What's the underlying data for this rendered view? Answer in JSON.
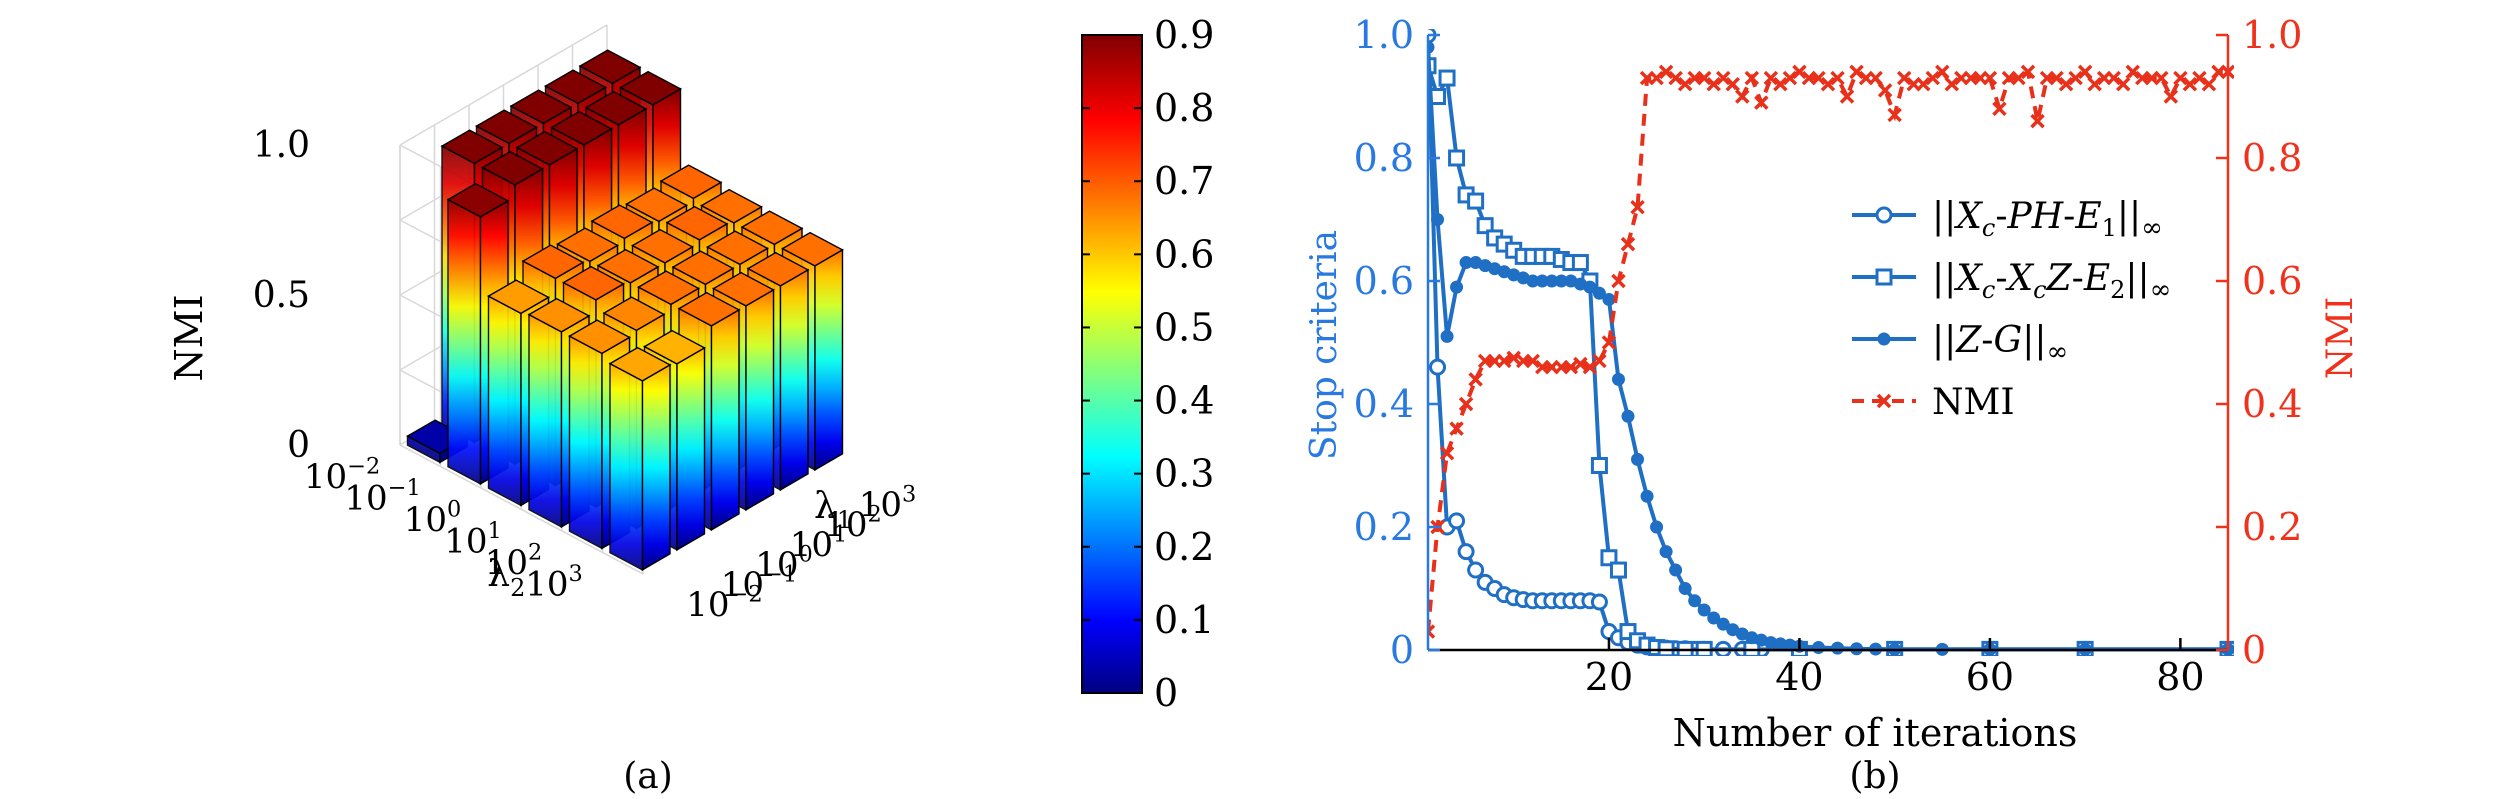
{
  "chart_data": [
    {
      "type": "bar3d",
      "panel_label": "(a)",
      "zlabel": "NMI",
      "xlabel": "λ1",
      "ylabel": "λ2",
      "ztick_labels": [
        "0",
        "0.5",
        "1.0"
      ],
      "x_tick_labels": [
        "10-2",
        "10-1",
        "100",
        "101",
        "102",
        "103"
      ],
      "y_tick_labels": [
        "10-2",
        "10-1",
        "100",
        "101",
        "102",
        "103"
      ],
      "zlim": [
        0,
        1.0
      ],
      "rows_note": "rows indexed by λ2 (10^-2 .. 10^3), columns by λ1 (10^-2 .. 10^3)",
      "values": [
        [
          0.03,
          0.93,
          0.93,
          0.93,
          0.93,
          0.93
        ],
        [
          0.89,
          0.93,
          0.93,
          0.93,
          0.93,
          0.93
        ],
        [
          0.64,
          0.69,
          0.68,
          0.69,
          0.68,
          0.69
        ],
        [
          0.65,
          0.69,
          0.68,
          0.68,
          0.69,
          0.68
        ],
        [
          0.65,
          0.66,
          0.68,
          0.68,
          0.68,
          0.68
        ],
        [
          0.63,
          0.62,
          0.68,
          0.68,
          0.68,
          0.68
        ]
      ],
      "colorbar": {
        "ticks": [
          "0",
          "0.1",
          "0.2",
          "0.3",
          "0.4",
          "0.5",
          "0.6",
          "0.7",
          "0.8",
          "0.9"
        ],
        "range": [
          0,
          0.9
        ],
        "colormap": "jet",
        "stops": [
          "#000080",
          "#0000ff",
          "#00ffff",
          "#ffff00",
          "#ff0000",
          "#800000"
        ]
      }
    },
    {
      "type": "line",
      "panel_label": "(b)",
      "xlabel": "Number of iterations",
      "ylabel_left": "Stop criteria",
      "ylabel_right": "NMI",
      "xlim": [
        1,
        85
      ],
      "ylim_left": [
        0,
        1.0
      ],
      "ylim_right": [
        0,
        1.0
      ],
      "x_tick_labels": [
        "20",
        "40",
        "60",
        "80"
      ],
      "x_ticks": [
        20,
        40,
        60,
        80
      ],
      "y_left_tick_labels": [
        "0",
        "0.2",
        "0.4",
        "0.6",
        "0.8",
        "1.0"
      ],
      "y_right_tick_labels": [
        "0",
        "0.2",
        "0.4",
        "0.6",
        "0.8",
        "1.0"
      ],
      "left_axis_color": "#2979e0",
      "right_axis_color": "#f0321c",
      "series_color_left": "#1f6fc4",
      "series_color_right": "#e8301a",
      "legend_position": "right",
      "series": [
        {
          "name": "||Xc-PH-E1||∞",
          "marker": "circle",
          "axis": "left",
          "x": [
            1,
            2,
            3,
            4,
            5,
            6,
            7,
            8,
            9,
            10,
            11,
            12,
            13,
            14,
            15,
            16,
            17,
            18,
            19,
            20,
            21,
            22,
            23,
            24,
            25,
            26,
            27,
            28,
            29,
            30,
            32,
            34,
            36,
            40,
            50,
            60,
            70,
            85
          ],
          "y": [
            1.0,
            0.46,
            0.2,
            0.21,
            0.16,
            0.13,
            0.11,
            0.1,
            0.09,
            0.085,
            0.082,
            0.08,
            0.08,
            0.08,
            0.08,
            0.08,
            0.08,
            0.08,
            0.078,
            0.03,
            0.02,
            0.012,
            0.008,
            0.005,
            0.004,
            0.003,
            0.002,
            0.002,
            0.001,
            0.001,
            0.001,
            0.001,
            0.001,
            0.001,
            0.001,
            0.001,
            0.001,
            0.001
          ]
        },
        {
          "name": "||Xc-XcZ-E2||∞",
          "marker": "square",
          "axis": "left",
          "x": [
            1,
            2,
            3,
            4,
            5,
            6,
            7,
            8,
            9,
            10,
            11,
            12,
            13,
            14,
            15,
            16,
            17,
            18,
            19,
            20,
            21,
            22,
            23,
            24,
            25,
            26,
            28,
            30,
            35,
            40,
            50,
            60,
            70,
            85
          ],
          "y": [
            0.95,
            0.9,
            0.93,
            0.8,
            0.74,
            0.73,
            0.69,
            0.67,
            0.66,
            0.65,
            0.64,
            0.64,
            0.64,
            0.64,
            0.635,
            0.63,
            0.63,
            0.6,
            0.3,
            0.15,
            0.13,
            0.03,
            0.015,
            0.008,
            0.004,
            0.002,
            0.001,
            0.001,
            0.001,
            0.001,
            0.001,
            0.001,
            0.001,
            0.001
          ]
        },
        {
          "name": "||Z-G||∞",
          "marker": "dot",
          "axis": "left",
          "x": [
            1,
            2,
            3,
            4,
            5,
            6,
            7,
            8,
            9,
            10,
            11,
            12,
            13,
            14,
            15,
            16,
            17,
            18,
            19,
            20,
            21,
            22,
            23,
            24,
            25,
            26,
            27,
            28,
            29,
            30,
            31,
            32,
            33,
            34,
            35,
            36,
            37,
            38,
            39,
            40,
            42,
            44,
            46,
            48,
            50,
            55,
            60,
            70,
            85
          ],
          "y": [
            0.98,
            0.7,
            0.51,
            0.59,
            0.63,
            0.63,
            0.625,
            0.62,
            0.615,
            0.61,
            0.605,
            0.6,
            0.6,
            0.6,
            0.6,
            0.6,
            0.595,
            0.59,
            0.58,
            0.57,
            0.44,
            0.38,
            0.31,
            0.25,
            0.2,
            0.16,
            0.13,
            0.1,
            0.08,
            0.065,
            0.052,
            0.042,
            0.033,
            0.026,
            0.02,
            0.016,
            0.012,
            0.01,
            0.008,
            0.006,
            0.004,
            0.003,
            0.002,
            0.0015,
            0.001,
            0.001,
            0.001,
            0.001,
            0.001
          ]
        },
        {
          "name": "NMI",
          "marker": "x",
          "axis": "right",
          "dashed": true,
          "x": [
            1,
            2,
            3,
            4,
            5,
            6,
            7,
            8,
            9,
            10,
            11,
            12,
            13,
            14,
            15,
            16,
            17,
            18,
            19,
            20,
            21,
            22,
            23,
            24,
            25,
            26,
            27,
            28,
            29,
            30,
            31,
            32,
            33,
            34,
            35,
            36,
            37,
            38,
            39,
            40,
            41,
            42,
            43,
            44,
            45,
            46,
            47,
            48,
            49,
            50,
            51,
            52,
            53,
            54,
            55,
            56,
            57,
            58,
            59,
            60,
            61,
            62,
            63,
            64,
            65,
            66,
            67,
            68,
            69,
            70,
            71,
            72,
            73,
            74,
            75,
            76,
            77,
            78,
            79,
            80,
            81,
            82,
            83,
            84,
            85
          ],
          "y": [
            0.03,
            0.2,
            0.32,
            0.36,
            0.4,
            0.44,
            0.47,
            0.47,
            0.47,
            0.475,
            0.47,
            0.47,
            0.46,
            0.46,
            0.46,
            0.46,
            0.465,
            0.46,
            0.47,
            0.5,
            0.6,
            0.66,
            0.72,
            0.93,
            0.93,
            0.94,
            0.93,
            0.92,
            0.93,
            0.93,
            0.92,
            0.93,
            0.92,
            0.9,
            0.93,
            0.89,
            0.93,
            0.92,
            0.93,
            0.94,
            0.93,
            0.93,
            0.92,
            0.93,
            0.9,
            0.94,
            0.93,
            0.93,
            0.91,
            0.87,
            0.93,
            0.92,
            0.92,
            0.93,
            0.94,
            0.92,
            0.93,
            0.93,
            0.93,
            0.93,
            0.88,
            0.93,
            0.93,
            0.94,
            0.86,
            0.93,
            0.93,
            0.92,
            0.93,
            0.94,
            0.92,
            0.93,
            0.93,
            0.92,
            0.94,
            0.93,
            0.93,
            0.93,
            0.9,
            0.93,
            0.92,
            0.93,
            0.92,
            0.94,
            0.94
          ]
        }
      ]
    }
  ]
}
